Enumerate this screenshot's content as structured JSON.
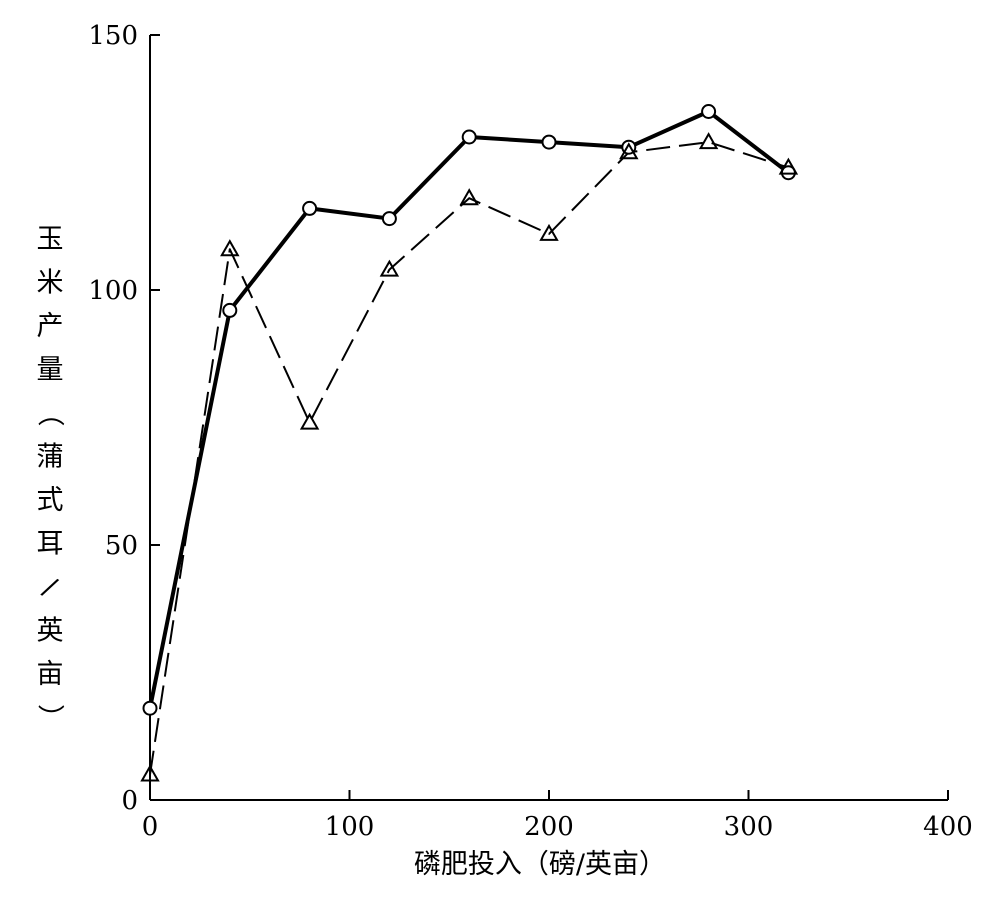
{
  "chart_data": {
    "type": "line",
    "xlabel": "磷肥投入（磅/英亩）",
    "ylabel": "玉米产量（蒲式耳/英亩）",
    "xlim": [
      0,
      400
    ],
    "ylim": [
      0,
      150
    ],
    "xticks": [
      "0",
      "100",
      "200",
      "300",
      "400"
    ],
    "yticks": [
      "0",
      "50",
      "100",
      "150"
    ],
    "grid": false,
    "x": [
      0,
      40,
      80,
      120,
      160,
      200,
      240,
      280,
      320
    ],
    "series": [
      {
        "marker": "circle",
        "line": "solid",
        "values": [
          18,
          96,
          116,
          114,
          130,
          129,
          128,
          135,
          123
        ]
      },
      {
        "marker": "triangle",
        "line": "dashed",
        "values": [
          5,
          108,
          74,
          104,
          118,
          111,
          127,
          129,
          124
        ]
      }
    ]
  }
}
